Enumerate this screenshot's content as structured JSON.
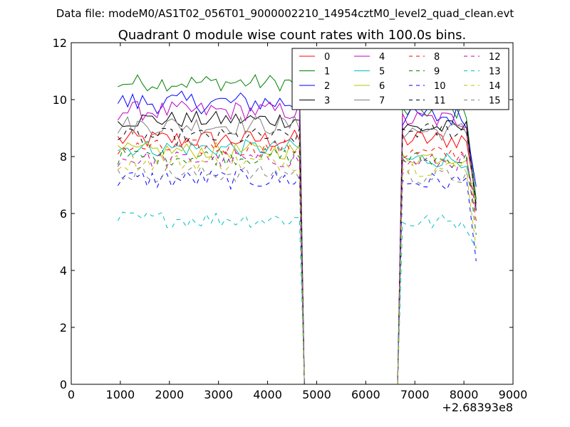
{
  "figure": {
    "suptitle": "Data file: modeM0/AS1T02_056T01_9000002210_14954cztM0_level2_quad_clean.evt",
    "title": "Quadrant 0 module wise count rates with 100.0s bins.",
    "x_offset_label": "+2.68393e8"
  },
  "chart_data": {
    "type": "line",
    "title": "Quadrant 0 module wise count rates with 100.0s bins.",
    "suptitle": "Data file: modeM0/AS1T02_056T01_9000002210_14954cztM0_level2_quad_clean.evt",
    "xlabel": "",
    "ylabel": "",
    "x_offset": "+2.68393e8",
    "xlim": [
      0,
      9000
    ],
    "ylim": [
      0,
      12
    ],
    "xticks": [
      "0",
      "1000",
      "2000",
      "3000",
      "4000",
      "5000",
      "6000",
      "7000",
      "8000",
      "9000"
    ],
    "yticks": [
      "0",
      "2",
      "4",
      "6",
      "8",
      "10",
      "12"
    ],
    "grid": false,
    "legend_position": "top-right",
    "legend_columns": 4,
    "segments": [
      {
        "x_start": 950,
        "x_end": 4750,
        "x_step": 100,
        "drop_to_zero_at": 4750
      },
      {
        "x_start": 6650,
        "x_end": 8250,
        "x_step": 100,
        "rise_from_zero_at": 6650
      }
    ],
    "series": [
      {
        "name": "0",
        "color": "#ff0000",
        "dash": "solid",
        "level_a": 8.6,
        "level_b": 8.6,
        "amp": 0.35
      },
      {
        "name": "1",
        "color": "#008000",
        "dash": "solid",
        "level_a": 10.6,
        "level_b": 9.6,
        "amp": 0.3
      },
      {
        "name": "2",
        "color": "#0000ff",
        "dash": "solid",
        "level_a": 9.9,
        "level_b": 9.4,
        "amp": 0.4
      },
      {
        "name": "3",
        "color": "#000000",
        "dash": "solid",
        "level_a": 9.3,
        "level_b": 9.0,
        "amp": 0.3
      },
      {
        "name": "4",
        "color": "#bf00bf",
        "dash": "solid",
        "level_a": 9.6,
        "level_b": 9.3,
        "amp": 0.35
      },
      {
        "name": "5",
        "color": "#00bfbf",
        "dash": "solid",
        "level_a": 8.3,
        "level_b": 7.9,
        "amp": 0.3
      },
      {
        "name": "6",
        "color": "#bfbf00",
        "dash": "solid",
        "level_a": 8.2,
        "level_b": 8.0,
        "amp": 0.3
      },
      {
        "name": "7",
        "color": "#7f7f7f",
        "dash": "solid",
        "level_a": 9.1,
        "level_b": 8.9,
        "amp": 0.35
      },
      {
        "name": "8",
        "color": "#ff0000",
        "dash": "dashed",
        "level_a": 8.3,
        "level_b": 8.1,
        "amp": 0.3
      },
      {
        "name": "9",
        "color": "#008000",
        "dash": "dashed",
        "level_a": 8.0,
        "level_b": 7.9,
        "amp": 0.3
      },
      {
        "name": "10",
        "color": "#0000ff",
        "dash": "dashed",
        "level_a": 7.2,
        "level_b": 7.1,
        "amp": 0.35
      },
      {
        "name": "11",
        "color": "#000000",
        "dash": "dashed",
        "level_a": 8.7,
        "level_b": 8.9,
        "amp": 0.3
      },
      {
        "name": "12",
        "color": "#bf00bf",
        "dash": "dashed",
        "level_a": 7.9,
        "level_b": 7.8,
        "amp": 0.3
      },
      {
        "name": "13",
        "color": "#00bfbf",
        "dash": "dashed",
        "level_a": 5.8,
        "level_b": 5.7,
        "amp": 0.3
      },
      {
        "name": "14",
        "color": "#bfbf00",
        "dash": "dashed",
        "level_a": 7.8,
        "level_b": 7.6,
        "amp": 0.3
      },
      {
        "name": "15",
        "color": "#7f7f7f",
        "dash": "dashed",
        "level_a": 7.4,
        "level_b": 7.3,
        "amp": 0.3
      }
    ]
  }
}
